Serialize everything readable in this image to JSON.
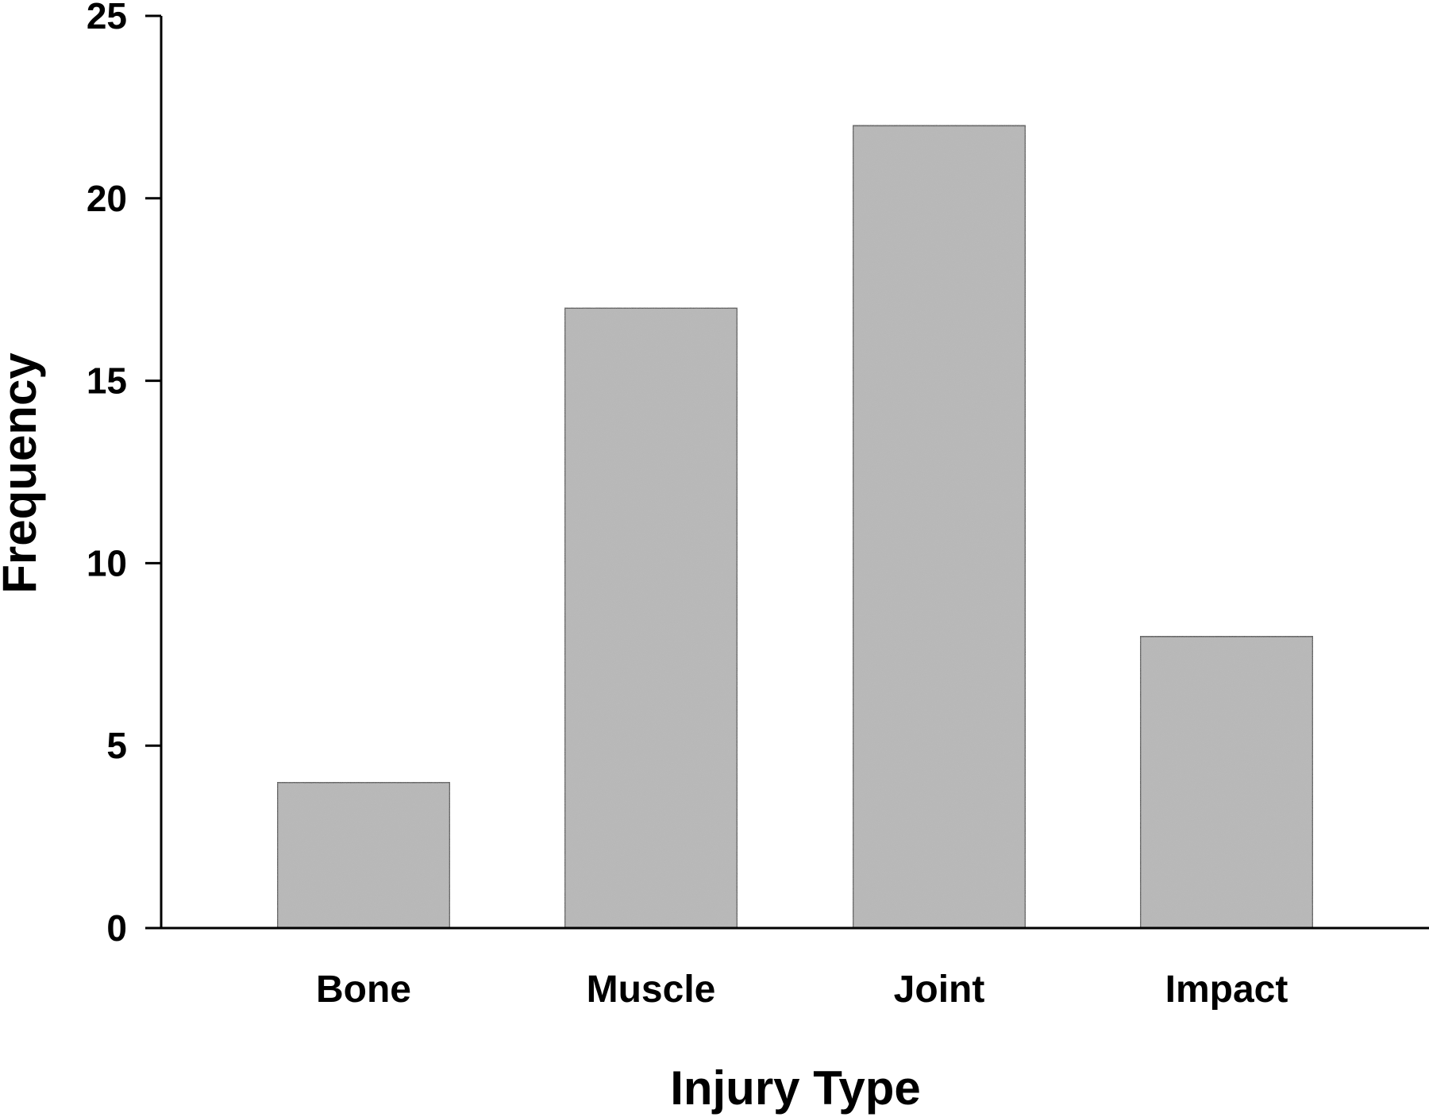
{
  "chart_data": {
    "type": "bar",
    "title": "",
    "xlabel": "Injury Type",
    "ylabel": "Frequency",
    "categories": [
      "Bone",
      "Muscle",
      "Joint",
      "Impact"
    ],
    "values": [
      4,
      17,
      22,
      8
    ],
    "ylim": [
      0,
      25
    ],
    "yticks": [
      "0",
      "5",
      "10",
      "15",
      "20",
      "25"
    ],
    "grid": false,
    "legend": "none",
    "colors": {
      "bar_fill": "#b4b4b4",
      "bar_stroke": "#000000",
      "axis": "#000000"
    }
  }
}
